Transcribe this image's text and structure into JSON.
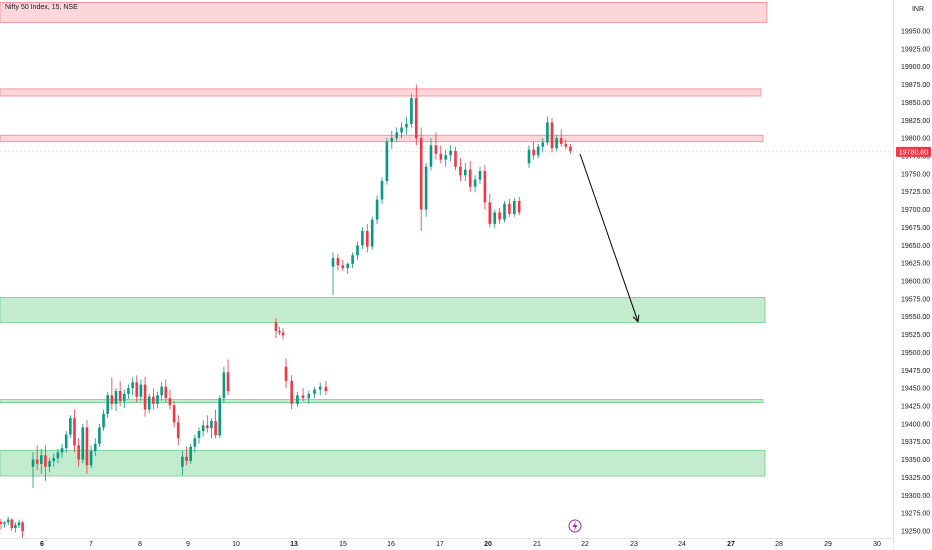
{
  "chart_data": {
    "type": "candlestick",
    "title": "Nifty 50 Index, 15, NSE",
    "currency": "INR",
    "ylim": [
      19237.5,
      19987.5
    ],
    "y_ticks": [
      19250,
      19275,
      19300,
      19325,
      19350,
      19375,
      19400,
      19425,
      19450,
      19475,
      19500,
      19525,
      19550,
      19575,
      19600,
      19625,
      19650,
      19675,
      19700,
      19725,
      19750,
      19775,
      19800,
      19825,
      19850,
      19875,
      19900,
      19925,
      19950
    ],
    "x_ticks": [
      {
        "label": "6",
        "bold": true
      },
      {
        "label": "7",
        "bold": false
      },
      {
        "label": "8",
        "bold": false
      },
      {
        "label": "9",
        "bold": false
      },
      {
        "label": "10",
        "bold": false
      },
      {
        "label": "13",
        "bold": true
      },
      {
        "label": "15",
        "bold": false
      },
      {
        "label": "16",
        "bold": false
      },
      {
        "label": "17",
        "bold": false
      },
      {
        "label": "20",
        "bold": true
      },
      {
        "label": "21",
        "bold": false
      },
      {
        "label": "22",
        "bold": false
      },
      {
        "label": "23",
        "bold": false
      },
      {
        "label": "24",
        "bold": false
      },
      {
        "label": "27",
        "bold": true
      },
      {
        "label": "28",
        "bold": false
      },
      {
        "label": "29",
        "bold": false
      },
      {
        "label": "30",
        "bold": false
      }
    ],
    "last_price": "19780.80",
    "colors": {
      "up": "#089981",
      "down": "#f23645",
      "resistance_fill": "#ffd6d9",
      "resistance_stroke": "#f7848e",
      "support_fill": "#c3ebcd",
      "support_stroke": "#6fcf89",
      "price_tag": "#f23645"
    },
    "zones": [
      {
        "kind": "resistance",
        "low": 19962,
        "high": 19990
      },
      {
        "kind": "resistance",
        "low": 19859,
        "high": 19869
      },
      {
        "kind": "resistance",
        "low": 19795,
        "high": 19804
      },
      {
        "kind": "support",
        "low": 19542,
        "high": 19577
      },
      {
        "kind": "support",
        "low": 19430,
        "high": 19434
      },
      {
        "kind": "support",
        "low": 19327,
        "high": 19363
      }
    ],
    "projection": {
      "from_price": 19778,
      "to_price": 19543
    },
    "segments": [
      {
        "day": "5",
        "points": [
          [
            19263,
            19267,
            19252,
            19260
          ],
          [
            19260,
            19264,
            19255,
            19262
          ],
          [
            19262,
            19270,
            19258,
            19266
          ],
          [
            19266,
            19268,
            19250,
            19254
          ],
          [
            19254,
            19262,
            19248,
            19258
          ],
          [
            19258,
            19266,
            19254,
            19262
          ],
          [
            19262,
            19264,
            19240,
            19250
          ]
        ]
      },
      {
        "day": "6-10",
        "points": [
          [
            19340,
            19360,
            19310,
            19350
          ],
          [
            19350,
            19370,
            19335,
            19344
          ],
          [
            19344,
            19365,
            19330,
            19356
          ],
          [
            19356,
            19370,
            19320,
            19340
          ],
          [
            19340,
            19352,
            19332,
            19348
          ],
          [
            19348,
            19358,
            19340,
            19352
          ],
          [
            19352,
            19365,
            19345,
            19360
          ],
          [
            19360,
            19372,
            19352,
            19366
          ],
          [
            19366,
            19390,
            19360,
            19385
          ],
          [
            19385,
            19412,
            19380,
            19408
          ],
          [
            19408,
            19420,
            19360,
            19370
          ],
          [
            19370,
            19380,
            19340,
            19350
          ],
          [
            19350,
            19400,
            19345,
            19395
          ],
          [
            19395,
            19405,
            19330,
            19342
          ],
          [
            19342,
            19370,
            19338,
            19362
          ],
          [
            19362,
            19380,
            19355,
            19372
          ],
          [
            19372,
            19400,
            19368,
            19395
          ],
          [
            19395,
            19420,
            19390,
            19414
          ],
          [
            19414,
            19445,
            19408,
            19440
          ],
          [
            19440,
            19465,
            19420,
            19428
          ],
          [
            19428,
            19450,
            19418,
            19446
          ],
          [
            19446,
            19460,
            19425,
            19432
          ],
          [
            19432,
            19448,
            19422,
            19442
          ],
          [
            19442,
            19455,
            19435,
            19450
          ],
          [
            19450,
            19465,
            19440,
            19458
          ],
          [
            19458,
            19468,
            19430,
            19438
          ],
          [
            19438,
            19462,
            19432,
            19455
          ],
          [
            19455,
            19466,
            19410,
            19420
          ],
          [
            19420,
            19442,
            19415,
            19438
          ],
          [
            19438,
            19450,
            19420,
            19428
          ],
          [
            19428,
            19445,
            19422,
            19440
          ],
          [
            19440,
            19458,
            19432,
            19452
          ],
          [
            19452,
            19462,
            19430,
            19436
          ],
          [
            19436,
            19448,
            19420,
            19426
          ],
          [
            19426,
            19432,
            19395,
            19402
          ],
          [
            19402,
            19412,
            19370,
            19380
          ],
          [
            19340,
            19362,
            19328,
            19354
          ],
          [
            19354,
            19368,
            19342,
            19348
          ],
          [
            19348,
            19372,
            19344,
            19368
          ],
          [
            19368,
            19385,
            19360,
            19380
          ],
          [
            19380,
            19395,
            19372,
            19390
          ],
          [
            19390,
            19405,
            19382,
            19398
          ],
          [
            19398,
            19412,
            19388,
            19394
          ],
          [
            19394,
            19408,
            19380,
            19404
          ],
          [
            19404,
            19420,
            19380,
            19384
          ],
          [
            19384,
            19440,
            19380,
            19436
          ],
          [
            19436,
            19480,
            19430,
            19472
          ],
          [
            19472,
            19490,
            19440,
            19446
          ]
        ]
      },
      {
        "day": "12",
        "points": [
          [
            19542,
            19548,
            19520,
            19530
          ],
          [
            19530,
            19536,
            19524,
            19528
          ],
          [
            19528,
            19534,
            19518,
            19524
          ]
        ]
      },
      {
        "day": "13-14",
        "points": [
          [
            19480,
            19492,
            19450,
            19460
          ],
          [
            19460,
            19468,
            19420,
            19428
          ],
          [
            19428,
            19445,
            19424,
            19440
          ],
          [
            19440,
            19450,
            19432,
            19436
          ],
          [
            19436,
            19446,
            19428,
            19442
          ],
          [
            19442,
            19452,
            19436,
            19448
          ],
          [
            19448,
            19458,
            19440,
            19452
          ],
          [
            19452,
            19460,
            19440,
            19446
          ]
        ]
      },
      {
        "day": "15-17",
        "points": [
          [
            19620,
            19640,
            19580,
            19632
          ],
          [
            19632,
            19638,
            19615,
            19622
          ],
          [
            19622,
            19630,
            19614,
            19618
          ],
          [
            19618,
            19626,
            19610,
            19624
          ],
          [
            19624,
            19640,
            19618,
            19636
          ],
          [
            19636,
            19655,
            19630,
            19650
          ],
          [
            19650,
            19675,
            19645,
            19670
          ],
          [
            19670,
            19680,
            19640,
            19648
          ],
          [
            19648,
            19690,
            19644,
            19686
          ],
          [
            19686,
            19720,
            19680,
            19714
          ],
          [
            19714,
            19745,
            19708,
            19740
          ],
          [
            19740,
            19800,
            19735,
            19795
          ],
          [
            19795,
            19810,
            19785,
            19800
          ],
          [
            19800,
            19815,
            19795,
            19808
          ],
          [
            19808,
            19822,
            19800,
            19815
          ],
          [
            19815,
            19830,
            19805,
            19820
          ],
          [
            19820,
            19862,
            19815,
            19856
          ],
          [
            19856,
            19875,
            19790,
            19800
          ],
          [
            19800,
            19815,
            19670,
            19700
          ],
          [
            19700,
            19765,
            19690,
            19760
          ],
          [
            19760,
            19800,
            19755,
            19790
          ],
          [
            19790,
            19808,
            19770,
            19778
          ],
          [
            19778,
            19790,
            19765,
            19770
          ],
          [
            19770,
            19784,
            19760,
            19776
          ],
          [
            19776,
            19790,
            19768,
            19782
          ],
          [
            19782,
            19788,
            19755,
            19760
          ],
          [
            19760,
            19772,
            19740,
            19748
          ],
          [
            19748,
            19765,
            19740,
            19756
          ],
          [
            19756,
            19768,
            19725,
            19732
          ],
          [
            19732,
            19748,
            19724,
            19742
          ],
          [
            19742,
            19760,
            19736,
            19754
          ],
          [
            19754,
            19762,
            19700,
            19710
          ],
          [
            19710,
            19722,
            19675,
            19680
          ],
          [
            19680,
            19700,
            19674,
            19696
          ],
          [
            19696,
            19702,
            19680,
            19686
          ],
          [
            19686,
            19712,
            19682,
            19708
          ],
          [
            19708,
            19715,
            19690,
            19694
          ],
          [
            19694,
            19716,
            19690,
            19712
          ],
          [
            19712,
            19718,
            19692,
            19696
          ]
        ]
      },
      {
        "day": "21",
        "points": [
          [
            19765,
            19790,
            19758,
            19784
          ],
          [
            19784,
            19795,
            19770,
            19776
          ],
          [
            19776,
            19792,
            19772,
            19788
          ],
          [
            19788,
            19800,
            19780,
            19794
          ],
          [
            19794,
            19830,
            19790,
            19822
          ],
          [
            19822,
            19828,
            19780,
            19786
          ],
          [
            19786,
            19805,
            19782,
            19800
          ],
          [
            19800,
            19812,
            19788,
            19792
          ],
          [
            19792,
            19798,
            19784,
            19788
          ],
          [
            19788,
            19792,
            19778,
            19782
          ]
        ]
      }
    ]
  }
}
